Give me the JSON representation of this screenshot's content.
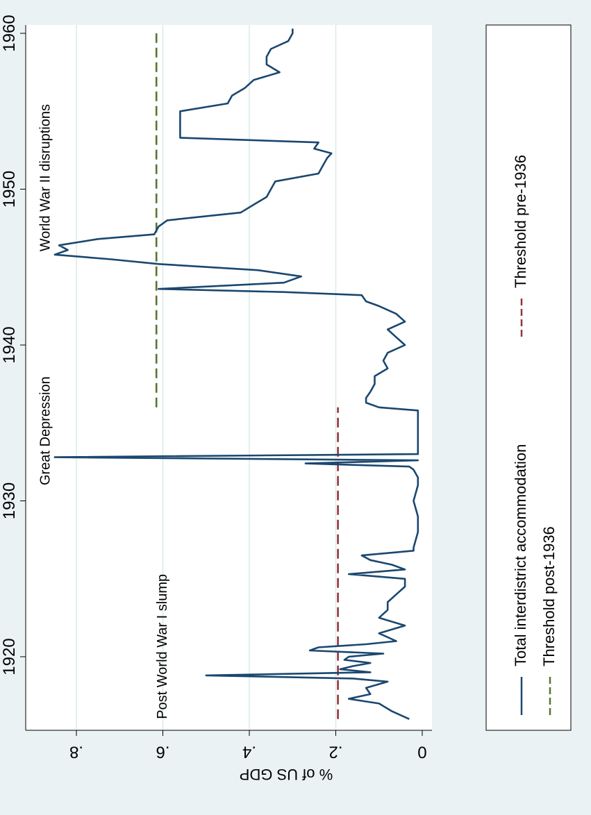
{
  "chart_data": {
    "type": "line",
    "orientation": "rotated-90-clockwise",
    "ylabel": "% of US GDP",
    "xlim": [
      1915,
      1961
    ],
    "ylim": [
      0,
      0.88
    ],
    "x_ticks": [
      1920,
      1930,
      1940,
      1950,
      1960
    ],
    "y_ticks": [
      0,
      0.2,
      0.4,
      0.6,
      0.8
    ],
    "y_tick_labels": [
      "0",
      ".2",
      ".4",
      ".6",
      ".8"
    ],
    "grid": true,
    "legend_position": "bottom",
    "colors": {
      "background": "#eaf2f3",
      "plot": "#ffffff",
      "grid": "#d8ecea",
      "series": "#1a476f",
      "pre": "#90353b",
      "post": "#55752f"
    },
    "annotations": [
      {
        "text": "Post World War I slump",
        "x": 1916,
        "y": 0.6
      },
      {
        "text": "Great Depression",
        "x": 1931,
        "y": 0.87
      },
      {
        "text": "World War II disruptions",
        "x": 1946,
        "y": 0.87
      }
    ],
    "series": [
      {
        "name": "Total interdistrict accommodation",
        "style": "solid",
        "x": [
          1916.0,
          1916.5,
          1917.0,
          1917.3,
          1917.6,
          1918.0,
          1918.4,
          1918.6,
          1918.8,
          1919.0,
          1919.2,
          1919.4,
          1919.6,
          1919.8,
          1920.0,
          1920.2,
          1920.4,
          1920.6,
          1920.8,
          1921.0,
          1921.5,
          1922.0,
          1922.5,
          1923.0,
          1923.5,
          1924.0,
          1924.5,
          1925.0,
          1925.3,
          1925.6,
          1925.9,
          1926.2,
          1926.5,
          1926.8,
          1927.0,
          1928.0,
          1929.0,
          1930.0,
          1931.0,
          1931.5,
          1932.0,
          1932.2,
          1932.4,
          1932.6,
          1932.8,
          1933.0,
          1933.3,
          1933.6,
          1934.0,
          1935.0,
          1935.8,
          1936.0,
          1936.3,
          1936.6,
          1937.0,
          1937.5,
          1938.0,
          1938.5,
          1939.0,
          1939.5,
          1940.0,
          1940.5,
          1941.0,
          1941.5,
          1942.0,
          1942.5,
          1942.8,
          1943.2,
          1943.4,
          1943.6,
          1944.0,
          1944.4,
          1944.8,
          1945.2,
          1945.5,
          1945.8,
          1946.1,
          1946.4,
          1946.8,
          1947.1,
          1947.6,
          1948.0,
          1948.5,
          1949.0,
          1949.5,
          1950.0,
          1950.5,
          1951.0,
          1951.5,
          1952.0,
          1952.3,
          1952.6,
          1953.0,
          1953.3,
          1954.0,
          1955.0,
          1955.5,
          1956.0,
          1956.5,
          1957.0,
          1957.5,
          1958.0,
          1958.5,
          1959.0,
          1959.5,
          1960.0,
          1960.3
        ],
        "values": [
          0.03,
          0.07,
          0.1,
          0.17,
          0.12,
          0.13,
          0.08,
          0.16,
          0.5,
          0.12,
          0.19,
          0.16,
          0.12,
          0.18,
          0.17,
          0.09,
          0.26,
          0.24,
          0.13,
          0.06,
          0.1,
          0.04,
          0.1,
          0.08,
          0.08,
          0.06,
          0.04,
          0.04,
          0.17,
          0.04,
          0.07,
          0.12,
          0.14,
          0.02,
          0.02,
          0.01,
          0.01,
          0.02,
          0.01,
          0.01,
          0.02,
          0.03,
          0.27,
          0.01,
          0.85,
          0.01,
          0.01,
          0.01,
          0.01,
          0.01,
          0.01,
          0.1,
          0.13,
          0.13,
          0.12,
          0.11,
          0.11,
          0.08,
          0.09,
          0.08,
          0.04,
          0.06,
          0.08,
          0.04,
          0.06,
          0.1,
          0.13,
          0.14,
          0.32,
          0.61,
          0.32,
          0.28,
          0.38,
          0.61,
          0.72,
          0.85,
          0.82,
          0.84,
          0.75,
          0.62,
          0.61,
          0.59,
          0.42,
          0.39,
          0.36,
          0.35,
          0.34,
          0.24,
          0.23,
          0.22,
          0.21,
          0.25,
          0.24,
          0.56,
          0.56,
          0.56,
          0.45,
          0.44,
          0.41,
          0.39,
          0.33,
          0.36,
          0.36,
          0.35,
          0.31,
          0.3,
          0.3
        ]
      },
      {
        "name": "Threshold pre-1936",
        "style": "dashed",
        "x": [
          1916,
          1936
        ],
        "values": [
          0.195,
          0.195
        ]
      },
      {
        "name": "Threshold post-1936",
        "style": "dashed",
        "x": [
          1936,
          1960
        ],
        "values": [
          0.615,
          0.615
        ]
      }
    ]
  }
}
